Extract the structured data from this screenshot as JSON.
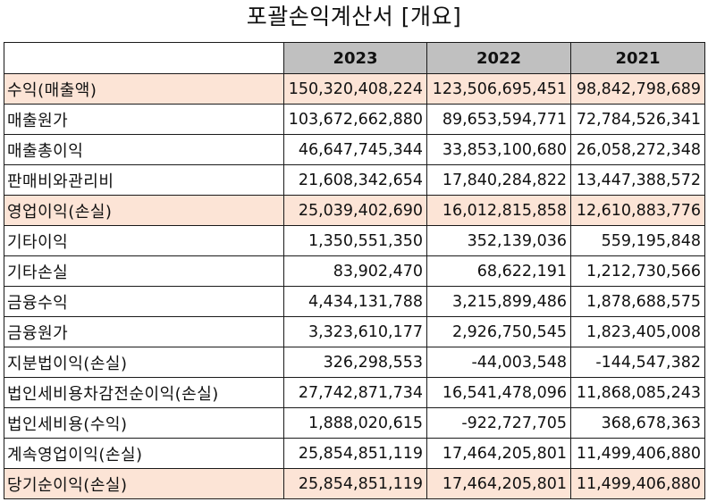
{
  "title": "포괄손익계산서 [개요]",
  "table": {
    "columns": [
      "",
      "2023",
      "2022",
      "2021"
    ],
    "rows": [
      {
        "label": "수익(매출액)",
        "highlight": true,
        "values": [
          "150,320,408,224",
          "123,506,695,451",
          "98,842,798,689"
        ]
      },
      {
        "label": "매출원가",
        "highlight": false,
        "values": [
          "103,672,662,880",
          "89,653,594,771",
          "72,784,526,341"
        ]
      },
      {
        "label": "매출총이익",
        "highlight": false,
        "values": [
          "46,647,745,344",
          "33,853,100,680",
          "26,058,272,348"
        ]
      },
      {
        "label": "판매비와관리비",
        "highlight": false,
        "values": [
          "21,608,342,654",
          "17,840,284,822",
          "13,447,388,572"
        ]
      },
      {
        "label": "영업이익(손실)",
        "highlight": true,
        "values": [
          "25,039,402,690",
          "16,012,815,858",
          "12,610,883,776"
        ]
      },
      {
        "label": "기타이익",
        "highlight": false,
        "values": [
          "1,350,551,350",
          "352,139,036",
          "559,195,848"
        ]
      },
      {
        "label": "기타손실",
        "highlight": false,
        "values": [
          "83,902,470",
          "68,622,191",
          "1,212,730,566"
        ]
      },
      {
        "label": "금융수익",
        "highlight": false,
        "values": [
          "4,434,131,788",
          "3,215,899,486",
          "1,878,688,575"
        ]
      },
      {
        "label": "금융원가",
        "highlight": false,
        "values": [
          "3,323,610,177",
          "2,926,750,545",
          "1,823,405,008"
        ]
      },
      {
        "label": "지분법이익(손실)",
        "highlight": false,
        "values": [
          "326,298,553",
          "-44,003,548",
          "-144,547,382"
        ]
      },
      {
        "label": "법인세비용차감전순이익(손실)",
        "highlight": false,
        "values": [
          "27,742,871,734",
          "16,541,478,096",
          "11,868,085,243"
        ]
      },
      {
        "label": "법인세비용(수익)",
        "highlight": false,
        "values": [
          "1,888,020,615",
          "-922,727,705",
          "368,678,363"
        ]
      },
      {
        "label": "계속영업이익(손실)",
        "highlight": false,
        "values": [
          "25,854,851,119",
          "17,464,205,801",
          "11,499,406,880"
        ]
      },
      {
        "label": "당기순이익(손실)",
        "highlight": true,
        "values": [
          "25,854,851,119",
          "17,464,205,801",
          "11,499,406,880"
        ]
      }
    ]
  },
  "colors": {
    "header_bg": "#c0c0c0",
    "highlight_bg": "#fce4d6",
    "border": "#1a1a1a"
  }
}
